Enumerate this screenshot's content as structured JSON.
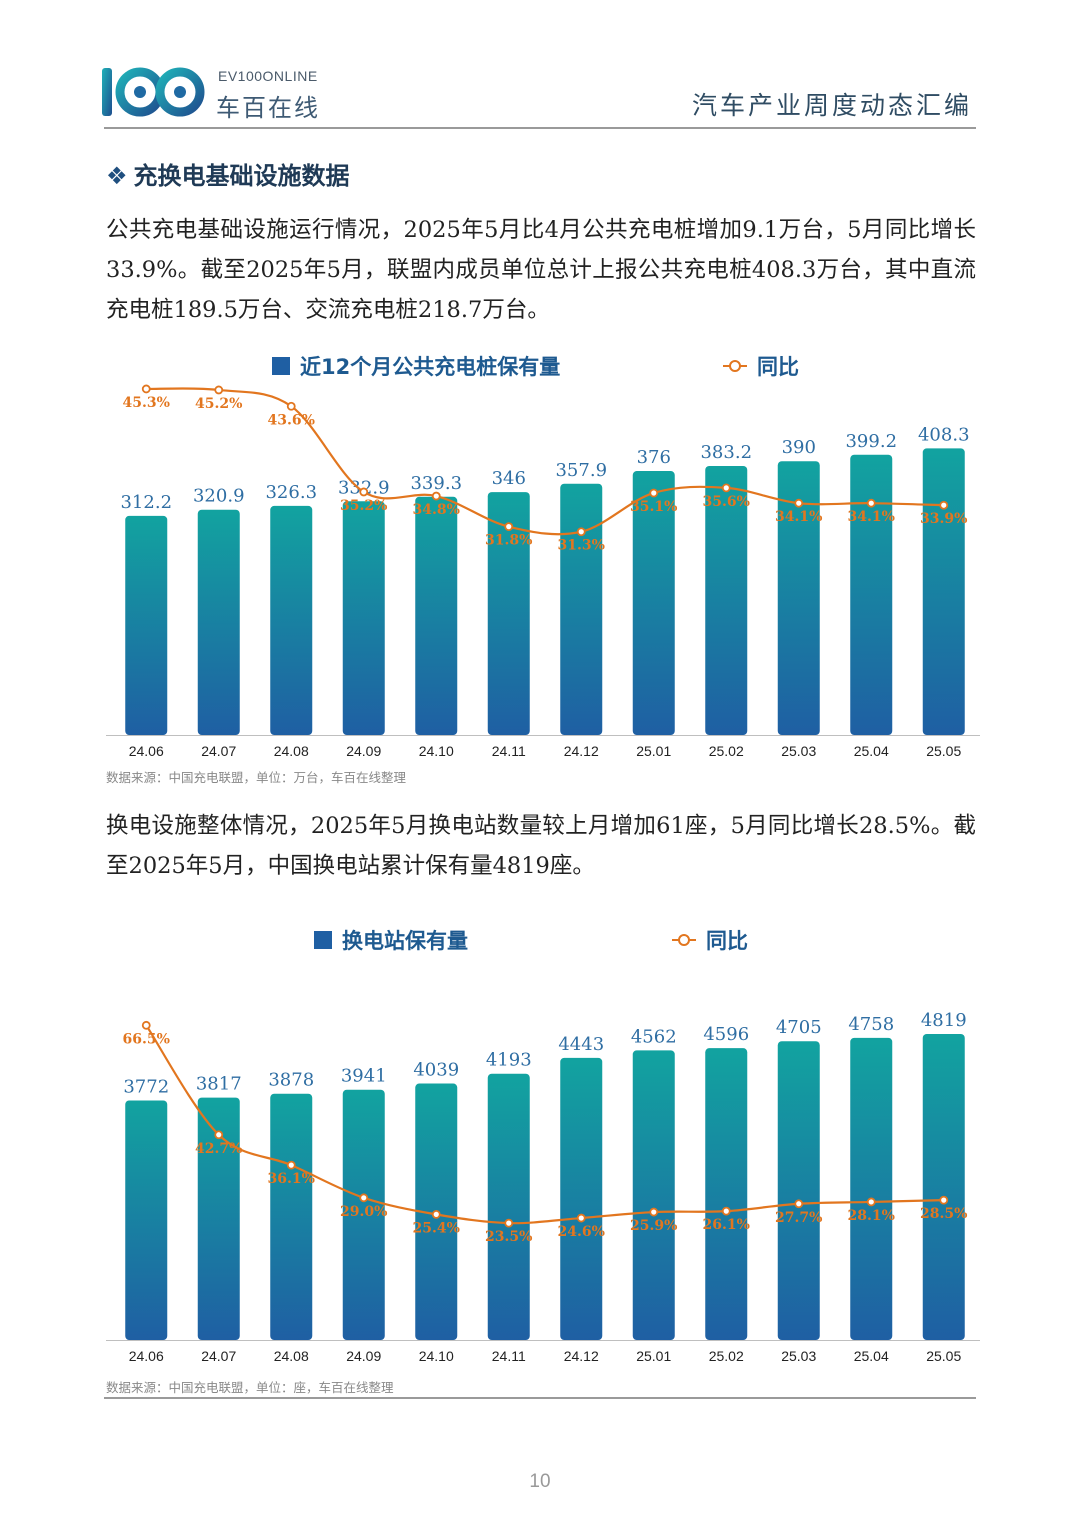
{
  "header": {
    "logo_mark": "100",
    "logo_sub": "EV100ONLINE",
    "logo_name": "车百在线",
    "title": "汽车产业周度动态汇编"
  },
  "section": {
    "bullet": "❖",
    "title": "充换电基础设施数据"
  },
  "paragraph1": "公共充电基础设施运行情况，2025年5月比4月公共充电桩增加9.1万台，5月同比增长33.9%。截至2025年5月，联盟内成员单位总计上报公共充电桩408.3万台，其中直流充电桩189.5万台、交流充电桩218.7万台。",
  "paragraph2": "换电设施整体情况，2025年5月换电站数量较上月增加61座，5月同比增长28.5%。截至2025年5月，中国换电站累计保有量4819座。",
  "chart_data": [
    {
      "type": "bar",
      "categories": [
        "24.06",
        "24.07",
        "24.08",
        "24.09",
        "24.10",
        "24.11",
        "24.12",
        "25.01",
        "25.02",
        "25.03",
        "25.04",
        "25.05"
      ],
      "series": [
        {
          "name": "近12个月公共充电桩保有量",
          "type": "bar",
          "values": [
            312.2,
            320.9,
            326.3,
            332.9,
            339.3,
            346,
            357.9,
            376,
            383.2,
            390,
            399.2,
            408.3
          ],
          "labels": [
            "312.2",
            "320.9",
            "326.3",
            "332.9",
            "339.3",
            "346",
            "357.9",
            "376",
            "383.2",
            "390",
            "399.2",
            "408.3"
          ]
        },
        {
          "name": "同比",
          "type": "line",
          "values": [
            45.3,
            45.2,
            43.6,
            35.2,
            34.8,
            31.8,
            31.3,
            35.1,
            35.6,
            34.1,
            34.1,
            33.9
          ],
          "labels": [
            "45.3%",
            "45.2%",
            "43.6%",
            "35.2%",
            "34.8%",
            "31.8%",
            "31.3%",
            "35.1%",
            "35.6%",
            "34.1%",
            "34.1%",
            "33.9%"
          ]
        }
      ],
      "source": "数据来源：中国充电联盟，单位：万台，车百在线整理",
      "legend_position": "top",
      "grid": false,
      "colors": {
        "bar_top": "#12a3a0",
        "bar_bottom": "#1f5fa3",
        "line": "#e2761f",
        "bar_label": "#2f6ea3"
      }
    },
    {
      "type": "bar",
      "categories": [
        "24.06",
        "24.07",
        "24.08",
        "24.09",
        "24.10",
        "24.11",
        "24.12",
        "25.01",
        "25.02",
        "25.03",
        "25.04",
        "25.05"
      ],
      "series": [
        {
          "name": "换电站保有量",
          "type": "bar",
          "values": [
            3772,
            3817,
            3878,
            3941,
            4039,
            4193,
            4443,
            4562,
            4596,
            4705,
            4758,
            4819
          ],
          "labels": [
            "3772",
            "3817",
            "3878",
            "3941",
            "4039",
            "4193",
            "4443",
            "4562",
            "4596",
            "4705",
            "4758",
            "4819"
          ]
        },
        {
          "name": "同比",
          "type": "line",
          "values": [
            66.5,
            42.7,
            36.1,
            29.0,
            25.4,
            23.5,
            24.6,
            25.9,
            26.1,
            27.7,
            28.1,
            28.5
          ],
          "labels": [
            "66.5%",
            "42.7%",
            "36.1%",
            "29.0%",
            "25.4%",
            "23.5%",
            "24.6%",
            "25.9%",
            "26.1%",
            "27.7%",
            "28.1%",
            "28.5%"
          ]
        }
      ],
      "source": "数据来源：中国充电联盟，单位：座，车百在线整理",
      "legend_position": "top",
      "grid": false,
      "colors": {
        "bar_top": "#12a3a0",
        "bar_bottom": "#1f5fa3",
        "line": "#e2761f",
        "bar_label": "#2f6ea3"
      }
    }
  ],
  "page_number": "10"
}
